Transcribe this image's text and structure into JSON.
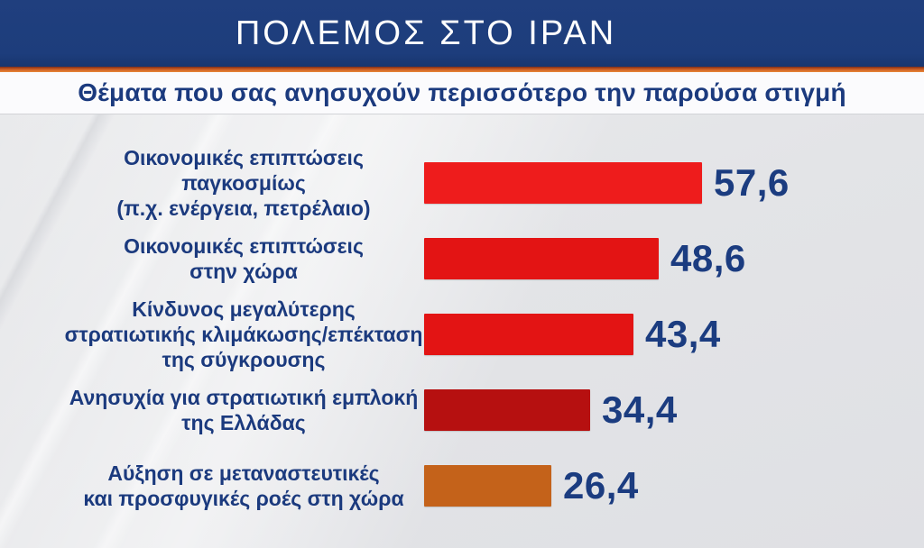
{
  "header": {
    "title": "ΠΟΛΕΜΟΣ ΣΤΟ ΙΡΑΝ"
  },
  "subtitle": "Θέματα που σας ανησυχούν περισσότερο την παρούσα στιγμή",
  "colors": {
    "header_bg": "#1d3d7c",
    "accent_orange": "#c85a22",
    "text_blue": "#1b3a7e",
    "background_gray": "#e4e5e8"
  },
  "chart_data": {
    "type": "bar",
    "orientation": "horizontal",
    "unit": "percent",
    "title": "Θέματα που σας ανησυχούν περισσότερο την παρούσα στιγμή",
    "xlabel": "",
    "ylabel": "",
    "xlim": [
      0,
      60
    ],
    "grid": false,
    "legend": false,
    "categories": [
      "Οικονομικές επιπτώσεις\nπαγκοσμίως\n(π.χ. ενέργεια, πετρέλαιο)",
      "Οικονομικές επιπτώσεις\nστην χώρα",
      "Κίνδυνος μεγαλύτερης\nστρατιωτικής κλιμάκωσης/επέκταση\nτης σύγκρουσης",
      "Ανησυχία για στρατιωτική εμπλοκή\nτης Ελλάδας",
      "Αύξηση σε μεταναστευτικές\nκαι προσφυγικές ροές στη χώρα"
    ],
    "values": [
      57.6,
      48.6,
      43.4,
      34.4,
      26.4
    ],
    "value_labels": [
      "57,6",
      "48,6",
      "43,4",
      "34,4",
      "26,4"
    ],
    "bar_colors": [
      "#ee1c1c",
      "#e31414",
      "#e31414",
      "#b61010",
      "#c4621a"
    ]
  }
}
